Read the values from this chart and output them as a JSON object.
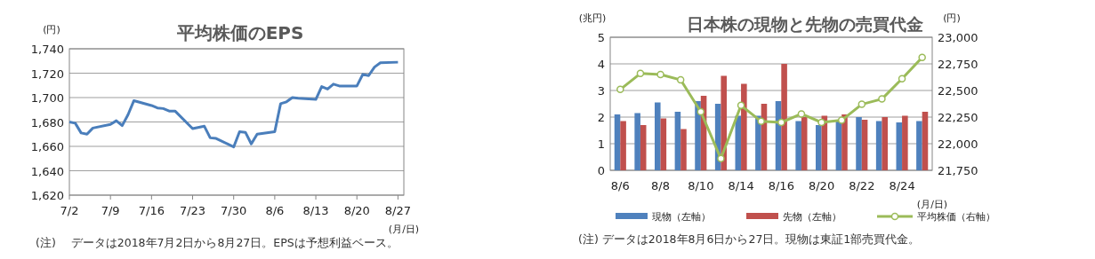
{
  "chart_data": [
    {
      "type": "line",
      "title": "平均株価のEPS",
      "ylabel": "(円)",
      "xlabel": "(月/日)",
      "annotations": [
        "(注)　 データは2018年7月2日から8月27日。EPSは予想利益ベース。"
      ],
      "x": [
        "2018-07-02",
        "2018-07-03",
        "2018-07-04",
        "2018-07-05",
        "2018-07-06",
        "2018-07-09",
        "2018-07-10",
        "2018-07-11",
        "2018-07-12",
        "2018-07-13",
        "2018-07-16",
        "2018-07-17",
        "2018-07-18",
        "2018-07-19",
        "2018-07-20",
        "2018-07-23",
        "2018-07-25",
        "2018-07-26",
        "2018-07-27",
        "2018-07-30",
        "2018-07-31",
        "2018-08-01",
        "2018-08-02",
        "2018-08-03",
        "2018-08-06",
        "2018-08-07",
        "2018-08-08",
        "2018-08-09",
        "2018-08-10",
        "2018-08-13",
        "2018-08-14",
        "2018-08-15",
        "2018-08-16",
        "2018-08-17",
        "2018-08-20",
        "2018-08-21",
        "2018-08-22",
        "2018-08-23",
        "2018-08-24",
        "2018-08-27"
      ],
      "series": [
        {
          "color": "#4a7ebb",
          "values": [
            1680,
            1679,
            1671,
            1670,
            1675,
            1678,
            1681,
            1677,
            1686,
            1697.5,
            1693.5,
            1691.5,
            1691,
            1689,
            1689,
            1674.5,
            1676.5,
            1667,
            1666.5,
            1659.5,
            1672,
            1671.5,
            1662,
            1670,
            1672,
            1695,
            1696.5,
            1700,
            1699.5,
            1698.5,
            1709,
            1707,
            1711,
            1709.5,
            1709.5,
            1719,
            1718,
            1725,
            1728.5,
            1729
          ]
        }
      ],
      "xlim": [
        "2018-07-02",
        "2018-08-28"
      ],
      "xticks": [
        {
          "value": "2018-07-02",
          "label": "7/2"
        },
        {
          "value": "2018-07-09",
          "label": "7/9"
        },
        {
          "value": "2018-07-16",
          "label": "7/16"
        },
        {
          "value": "2018-07-23",
          "label": "7/23"
        },
        {
          "value": "2018-07-30",
          "label": "7/30"
        },
        {
          "value": "2018-08-06",
          "label": "8/6"
        },
        {
          "value": "2018-08-13",
          "label": "8/13"
        },
        {
          "value": "2018-08-20",
          "label": "8/20"
        },
        {
          "value": "2018-08-27",
          "label": "8/27"
        }
      ],
      "ylim": [
        1620,
        1740
      ],
      "yticks": [
        {
          "value": 1620,
          "label": "1,620"
        },
        {
          "value": 1640,
          "label": "1,640"
        },
        {
          "value": 1660,
          "label": "1,660"
        },
        {
          "value": 1680,
          "label": "1,680"
        },
        {
          "value": 1700,
          "label": "1,700"
        },
        {
          "value": 1720,
          "label": "1,720"
        },
        {
          "value": 1740,
          "label": "1,740"
        }
      ],
      "grid": "y"
    },
    {
      "type": "bar",
      "title": "日本株の現物と先物の売買代金",
      "ylabel": "(兆円)",
      "y2label": "(円)",
      "xlabel": "(月/日)",
      "annotations": [
        "(注)  データは2018年8月6日から27日。現物は東証1部売買代金。"
      ],
      "categories": [
        "8/6",
        null,
        "8/8",
        null,
        "8/10",
        null,
        "8/14",
        null,
        "8/16",
        null,
        "8/20",
        null,
        "8/22",
        null,
        "8/24",
        null
      ],
      "series": [
        {
          "name": "現物（左軸）",
          "color": "#4f81bd",
          "values": [
            2.1,
            2.15,
            2.55,
            2.2,
            2.6,
            2.5,
            2.05,
            2.05,
            2.6,
            1.85,
            1.7,
            1.9,
            2.0,
            1.85,
            1.8,
            1.85
          ]
        },
        {
          "name": "先物（左軸）",
          "color": "#c0504d",
          "values": [
            1.85,
            1.7,
            1.95,
            1.55,
            2.8,
            3.55,
            3.25,
            2.5,
            4.0,
            2.0,
            2.05,
            2.1,
            1.9,
            2.0,
            2.05,
            2.2
          ]
        },
        {
          "name": "平均株価（右軸）",
          "type": "line",
          "axis": "y2",
          "marker": "circle",
          "color": "#9bbb59",
          "values": [
            22510,
            22660,
            22650,
            22600,
            22300,
            21860,
            22360,
            22210,
            22200,
            22280,
            22200,
            22220,
            22370,
            22420,
            22610,
            22810
          ]
        }
      ],
      "ylim": [
        0,
        5
      ],
      "yticks": [
        0,
        1,
        2,
        3,
        4,
        5
      ],
      "y2lim": [
        21750,
        23000
      ],
      "y2ticks": [
        {
          "value": 21750,
          "label": "21,750"
        },
        {
          "value": 22000,
          "label": "22,000"
        },
        {
          "value": 22250,
          "label": "22,250"
        },
        {
          "value": 22500,
          "label": "22,500"
        },
        {
          "value": 22750,
          "label": "22,750"
        },
        {
          "value": 23000,
          "label": "23,000"
        }
      ],
      "grid": "y",
      "legend": "bottom"
    }
  ]
}
